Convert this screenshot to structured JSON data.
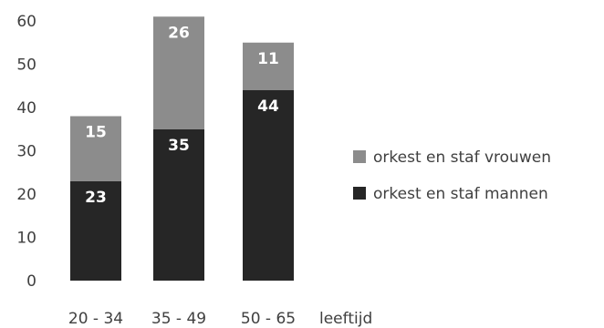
{
  "chart_data": {
    "type": "bar",
    "stacked": true,
    "categories": [
      "20 - 34",
      "35 - 49",
      "50 - 65"
    ],
    "xlabel": "leeftijd",
    "ylim": [
      0,
      60
    ],
    "yticks": [
      0,
      10,
      20,
      30,
      40,
      50,
      60
    ],
    "grid": false,
    "legend_position": "right",
    "series": [
      {
        "name": "orkest en staf mannen",
        "values": [
          23,
          35,
          44
        ],
        "color": "#262626"
      },
      {
        "name": "orkest en staf  vrouwen",
        "values": [
          15,
          26,
          11
        ],
        "color": "#8c8c8c"
      }
    ]
  }
}
